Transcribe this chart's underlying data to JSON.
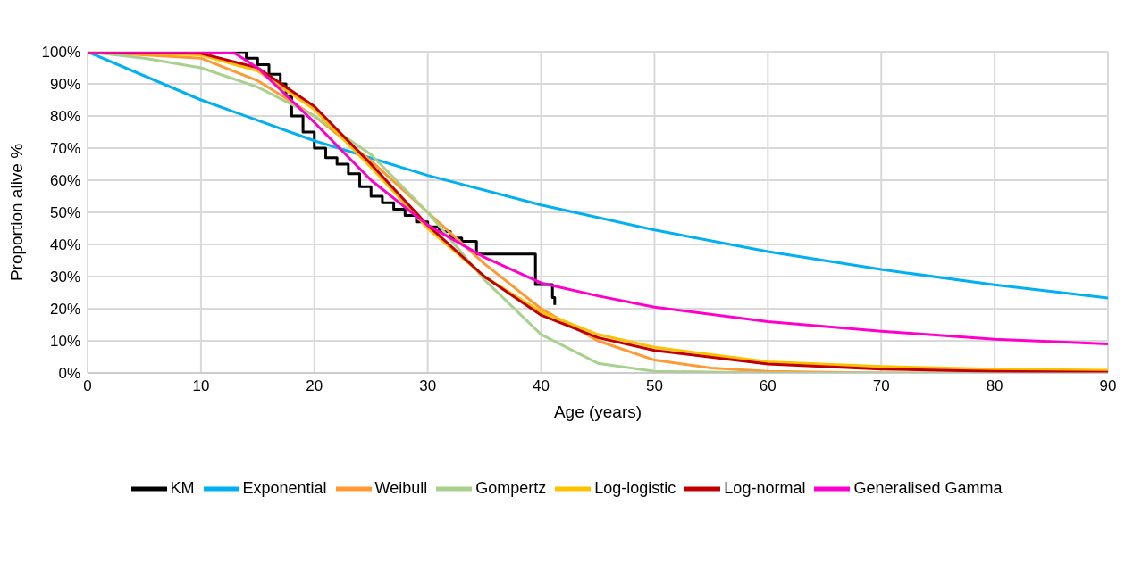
{
  "chart_data": {
    "type": "line",
    "xlabel": "Age (years)",
    "ylabel": "Proportion alive %",
    "xlim": [
      0,
      90
    ],
    "xticks": [
      0,
      10,
      20,
      30,
      40,
      50,
      60,
      70,
      80,
      90
    ],
    "ylim": [
      0,
      100
    ],
    "yticks": [
      {
        "value": 0,
        "label": "0%"
      },
      {
        "value": 10,
        "label": "10%"
      },
      {
        "value": 20,
        "label": "20%"
      },
      {
        "value": 30,
        "label": "30%"
      },
      {
        "value": 40,
        "label": "40%"
      },
      {
        "value": 50,
        "label": "50%"
      },
      {
        "value": 60,
        "label": "60%"
      },
      {
        "value": 70,
        "label": "70%"
      },
      {
        "value": 80,
        "label": "80%"
      },
      {
        "value": 90,
        "label": "90%"
      },
      {
        "value": 100,
        "label": "100%"
      }
    ],
    "grid": true,
    "legend": "bottom",
    "marker": "none",
    "line_style": "solid",
    "series": [
      {
        "name": "KM",
        "type": "step",
        "color": "#000000",
        "x": [
          0,
          13,
          14,
          15,
          16,
          17,
          17.5,
          18,
          19,
          20,
          21,
          22,
          23,
          24,
          25,
          26,
          27,
          28,
          29,
          30,
          31,
          32,
          33,
          34.3,
          39.5,
          41,
          41.2
        ],
        "values": [
          100,
          100,
          98,
          96,
          93,
          90,
          86,
          80,
          75,
          70,
          67,
          65,
          62,
          58,
          55,
          53,
          51,
          49,
          47,
          45.5,
          44,
          42,
          41,
          37,
          27.5,
          23.5,
          21.2
        ]
      },
      {
        "name": "Exponential",
        "color": "#00b0f0",
        "x": [
          0,
          10,
          20,
          30,
          40,
          50,
          60,
          70,
          80,
          90
        ],
        "values": [
          100,
          85,
          72.3,
          61.5,
          52.3,
          44.5,
          37.8,
          32.2,
          27.4,
          23.3
        ]
      },
      {
        "name": "Weibull",
        "color": "#ff9933",
        "x": [
          0,
          10,
          15,
          20,
          25,
          30,
          35,
          40,
          45,
          50,
          55,
          60,
          70,
          90
        ],
        "values": [
          100,
          98,
          91,
          80,
          66,
          50,
          34,
          20,
          10,
          4,
          1.5,
          0.5,
          0,
          0
        ]
      },
      {
        "name": "Gompertz",
        "color": "#a9d18e",
        "x": [
          0,
          5,
          10,
          15,
          20,
          25,
          30,
          35,
          40,
          45,
          50,
          60,
          90
        ],
        "values": [
          100,
          98,
          95,
          89,
          80,
          68,
          50,
          29,
          12,
          3,
          0.5,
          0,
          0
        ]
      },
      {
        "name": "Log-logistic",
        "color": "#ffc000",
        "x": [
          0,
          10,
          15,
          20,
          25,
          30,
          35,
          40,
          45,
          50,
          60,
          70,
          80,
          90
        ],
        "values": [
          100,
          99,
          94,
          82,
          64,
          45,
          30,
          19,
          12,
          8,
          3.5,
          2,
          1.2,
          0.8
        ]
      },
      {
        "name": "Log-normal",
        "color": "#c00000",
        "x": [
          0,
          10,
          15,
          20,
          25,
          30,
          35,
          40,
          45,
          50,
          60,
          70,
          80,
          90
        ],
        "values": [
          100,
          99.5,
          95,
          83,
          65,
          46,
          30,
          18,
          11,
          7,
          2.8,
          1.2,
          0.5,
          0.2
        ]
      },
      {
        "name": "Generalised Gamma",
        "color": "#ff00cc",
        "x": [
          0,
          10,
          13,
          15,
          20,
          25,
          30,
          35,
          40,
          45,
          50,
          60,
          70,
          80,
          90
        ],
        "values": [
          100,
          100,
          99.5,
          95,
          78,
          60,
          46,
          36,
          28,
          24,
          20.5,
          16,
          13,
          10.5,
          9
        ]
      }
    ]
  }
}
